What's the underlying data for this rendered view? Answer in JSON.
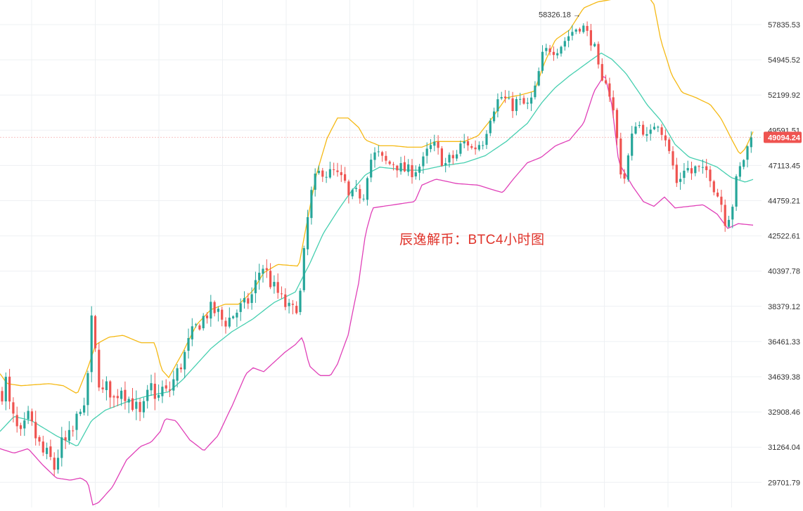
{
  "chart_data": {
    "type": "candlestick",
    "watermark": "辰逸解币：BTC4小时图",
    "price_axis": {
      "ticks": [
        57835.53,
        54945.52,
        52199.92,
        49591.51,
        47113.45,
        44759.21,
        42522.61,
        40397.78,
        38379.12,
        36461.33,
        34639.38,
        32908.46,
        31264.04,
        29701.79
      ],
      "range": [
        29000,
        59000
      ]
    },
    "last_price": {
      "label": "49094.24",
      "value": 49094.24
    },
    "high_annotation": {
      "label": "58326.18",
      "value": 58326.18
    },
    "colors": {
      "up": "#26a69a",
      "down": "#ef5350",
      "upper_band": "#f5b914",
      "middle_band": "#46cfb0",
      "lower_band": "#e040b8",
      "grid": "#eef0f3"
    },
    "indicator": "Bollinger Bands",
    "path_keys": [
      [
        0,
        33500
      ],
      [
        8,
        34500
      ],
      [
        14,
        33100
      ],
      [
        22,
        32200
      ],
      [
        30,
        31700
      ],
      [
        40,
        32600
      ],
      [
        50,
        31800
      ],
      [
        60,
        31000
      ],
      [
        70,
        30800
      ],
      [
        78,
        30300
      ],
      [
        85,
        31300
      ],
      [
        95,
        31500
      ],
      [
        105,
        32000
      ],
      [
        115,
        33400
      ],
      [
        121,
        32600
      ],
      [
        126,
        35500
      ],
      [
        130,
        37600
      ],
      [
        134,
        36300
      ],
      [
        140,
        34600
      ],
      [
        146,
        33800
      ],
      [
        154,
        34200
      ],
      [
        162,
        33500
      ],
      [
        172,
        34200
      ],
      [
        182,
        33600
      ],
      [
        192,
        33200
      ],
      [
        200,
        32600
      ],
      [
        208,
        33500
      ],
      [
        216,
        34200
      ],
      [
        224,
        33500
      ],
      [
        232,
        34100
      ],
      [
        238,
        33700
      ],
      [
        246,
        34400
      ],
      [
        254,
        35000
      ],
      [
        262,
        35700
      ],
      [
        272,
        36800
      ],
      [
        282,
        37400
      ],
      [
        292,
        37900
      ],
      [
        300,
        38200
      ],
      [
        310,
        38000
      ],
      [
        318,
        37500
      ],
      [
        326,
        37700
      ],
      [
        334,
        38000
      ],
      [
        342,
        38300
      ],
      [
        350,
        38500
      ],
      [
        358,
        39000
      ],
      [
        366,
        40000
      ],
      [
        372,
        40800
      ],
      [
        378,
        40400
      ],
      [
        386,
        39600
      ],
      [
        394,
        39200
      ],
      [
        400,
        38800
      ],
      [
        408,
        38300
      ],
      [
        416,
        38100
      ],
      [
        424,
        38600
      ],
      [
        430,
        39600
      ],
      [
        434,
        42700
      ],
      [
        438,
        43700
      ],
      [
        444,
        45600
      ],
      [
        450,
        46400
      ],
      [
        458,
        46800
      ],
      [
        466,
        46500
      ],
      [
        474,
        46700
      ],
      [
        482,
        46300
      ],
      [
        490,
        46000
      ],
      [
        496,
        44900
      ],
      [
        502,
        45100
      ],
      [
        510,
        45300
      ],
      [
        516,
        44900
      ],
      [
        522,
        46600
      ],
      [
        528,
        47600
      ],
      [
        536,
        48000
      ],
      [
        544,
        47500
      ],
      [
        552,
        47200
      ],
      [
        560,
        47300
      ],
      [
        568,
        47000
      ],
      [
        576,
        46800
      ],
      [
        584,
        46700
      ],
      [
        592,
        46900
      ],
      [
        600,
        47200
      ],
      [
        608,
        48100
      ],
      [
        616,
        48600
      ],
      [
        624,
        48000
      ],
      [
        632,
        47100
      ],
      [
        640,
        47600
      ],
      [
        648,
        47700
      ],
      [
        656,
        48600
      ],
      [
        664,
        48800
      ],
      [
        672,
        48200
      ],
      [
        680,
        48600
      ],
      [
        688,
        48900
      ],
      [
        696,
        50500
      ],
      [
        704,
        51500
      ],
      [
        712,
        52100
      ],
      [
        720,
        51800
      ],
      [
        728,
        51300
      ],
      [
        736,
        51800
      ],
      [
        744,
        51500
      ],
      [
        752,
        51400
      ],
      [
        760,
        52400
      ],
      [
        766,
        53900
      ],
      [
        772,
        55400
      ],
      [
        780,
        55900
      ],
      [
        790,
        55700
      ],
      [
        800,
        56300
      ],
      [
        808,
        56900
      ],
      [
        816,
        57400
      ],
      [
        824,
        57700
      ],
      [
        830,
        57600
      ],
      [
        836,
        57000
      ],
      [
        842,
        56400
      ],
      [
        848,
        55500
      ],
      [
        852,
        53700
      ],
      [
        856,
        53000
      ],
      [
        862,
        53500
      ],
      [
        868,
        52000
      ],
      [
        874,
        50500
      ],
      [
        880,
        47800
      ],
      [
        886,
        45700
      ],
      [
        892,
        47300
      ],
      [
        898,
        48900
      ],
      [
        904,
        50200
      ],
      [
        910,
        49900
      ],
      [
        916,
        49600
      ],
      [
        922,
        48700
      ],
      [
        928,
        49800
      ],
      [
        934,
        50400
      ],
      [
        940,
        49700
      ],
      [
        946,
        49200
      ],
      [
        952,
        47900
      ],
      [
        958,
        46900
      ],
      [
        964,
        45500
      ],
      [
        970,
        46900
      ],
      [
        976,
        47100
      ],
      [
        982,
        46500
      ],
      [
        988,
        46900
      ],
      [
        994,
        46800
      ],
      [
        1000,
        46600
      ],
      [
        1006,
        46800
      ],
      [
        1012,
        46300
      ],
      [
        1018,
        45200
      ],
      [
        1024,
        45100
      ],
      [
        1030,
        43500
      ],
      [
        1036,
        43800
      ],
      [
        1042,
        44600
      ],
      [
        1048,
        46300
      ],
      [
        1054,
        47100
      ],
      [
        1060,
        47900
      ],
      [
        1066,
        48800
      ],
      [
        1072,
        49094
      ]
    ],
    "upper_band_keys": [
      [
        0,
        34800
      ],
      [
        10,
        34300
      ],
      [
        30,
        34200
      ],
      [
        70,
        34300
      ],
      [
        90,
        34200
      ],
      [
        110,
        33800
      ],
      [
        124,
        35000
      ],
      [
        136,
        36300
      ],
      [
        155,
        36700
      ],
      [
        175,
        36800
      ],
      [
        200,
        36400
      ],
      [
        220,
        36400
      ],
      [
        230,
        35000
      ],
      [
        240,
        34600
      ],
      [
        260,
        35900
      ],
      [
        280,
        37400
      ],
      [
        300,
        38200
      ],
      [
        320,
        38500
      ],
      [
        340,
        38500
      ],
      [
        360,
        39300
      ],
      [
        375,
        40300
      ],
      [
        395,
        40800
      ],
      [
        425,
        40700
      ],
      [
        435,
        43000
      ],
      [
        450,
        46500
      ],
      [
        465,
        49000
      ],
      [
        480,
        50500
      ],
      [
        495,
        50500
      ],
      [
        510,
        49800
      ],
      [
        520,
        48900
      ],
      [
        540,
        48500
      ],
      [
        560,
        48500
      ],
      [
        580,
        48400
      ],
      [
        600,
        48400
      ],
      [
        620,
        48800
      ],
      [
        640,
        48800
      ],
      [
        660,
        48800
      ],
      [
        680,
        49200
      ],
      [
        700,
        50500
      ],
      [
        720,
        52000
      ],
      [
        740,
        52200
      ],
      [
        760,
        52500
      ],
      [
        775,
        54800
      ],
      [
        790,
        56600
      ],
      [
        810,
        57400
      ],
      [
        830,
        59200
      ],
      [
        850,
        59700
      ],
      [
        870,
        59900
      ],
      [
        880,
        60500
      ],
      [
        900,
        60800
      ],
      [
        915,
        60700
      ],
      [
        930,
        59500
      ],
      [
        940,
        56500
      ],
      [
        955,
        53800
      ],
      [
        970,
        52400
      ],
      [
        990,
        52000
      ],
      [
        1010,
        51500
      ],
      [
        1025,
        50500
      ],
      [
        1040,
        49000
      ],
      [
        1052,
        47900
      ],
      [
        1060,
        48300
      ],
      [
        1072,
        49600
      ]
    ],
    "middle_band_keys": [
      [
        0,
        32000
      ],
      [
        20,
        32700
      ],
      [
        45,
        32500
      ],
      [
        80,
        31800
      ],
      [
        110,
        31300
      ],
      [
        130,
        32500
      ],
      [
        150,
        33000
      ],
      [
        180,
        33400
      ],
      [
        210,
        33700
      ],
      [
        240,
        33900
      ],
      [
        260,
        34500
      ],
      [
        280,
        35300
      ],
      [
        300,
        36100
      ],
      [
        330,
        37000
      ],
      [
        360,
        37700
      ],
      [
        390,
        38600
      ],
      [
        420,
        39200
      ],
      [
        440,
        40800
      ],
      [
        460,
        42700
      ],
      [
        480,
        44100
      ],
      [
        500,
        45400
      ],
      [
        520,
        46500
      ],
      [
        540,
        47000
      ],
      [
        560,
        46900
      ],
      [
        580,
        46800
      ],
      [
        600,
        46800
      ],
      [
        630,
        47100
      ],
      [
        660,
        47300
      ],
      [
        690,
        47800
      ],
      [
        720,
        48800
      ],
      [
        750,
        50100
      ],
      [
        770,
        51600
      ],
      [
        790,
        52800
      ],
      [
        810,
        53700
      ],
      [
        830,
        54500
      ],
      [
        845,
        55100
      ],
      [
        855,
        55500
      ],
      [
        870,
        55000
      ],
      [
        890,
        53900
      ],
      [
        920,
        51500
      ],
      [
        940,
        50300
      ],
      [
        960,
        48600
      ],
      [
        980,
        47700
      ],
      [
        1000,
        47400
      ],
      [
        1020,
        47000
      ],
      [
        1040,
        46300
      ],
      [
        1060,
        46000
      ],
      [
        1072,
        46200
      ]
    ],
    "lower_band_keys": [
      [
        0,
        31200
      ],
      [
        20,
        31000
      ],
      [
        40,
        31200
      ],
      [
        60,
        30500
      ],
      [
        80,
        29900
      ],
      [
        100,
        29800
      ],
      [
        115,
        29900
      ],
      [
        125,
        29700
      ],
      [
        132,
        28700
      ],
      [
        140,
        28800
      ],
      [
        160,
        29500
      ],
      [
        180,
        30700
      ],
      [
        200,
        31300
      ],
      [
        215,
        31500
      ],
      [
        228,
        32000
      ],
      [
        235,
        32600
      ],
      [
        250,
        32500
      ],
      [
        270,
        31600
      ],
      [
        290,
        31100
      ],
      [
        310,
        31800
      ],
      [
        330,
        33200
      ],
      [
        350,
        34800
      ],
      [
        360,
        35100
      ],
      [
        375,
        34900
      ],
      [
        390,
        35400
      ],
      [
        405,
        35900
      ],
      [
        420,
        36300
      ],
      [
        430,
        36700
      ],
      [
        440,
        35200
      ],
      [
        455,
        34700
      ],
      [
        470,
        34700
      ],
      [
        480,
        35300
      ],
      [
        495,
        36800
      ],
      [
        510,
        39700
      ],
      [
        520,
        42700
      ],
      [
        530,
        44300
      ],
      [
        560,
        44500
      ],
      [
        590,
        44700
      ],
      [
        600,
        45800
      ],
      [
        620,
        46200
      ],
      [
        650,
        45900
      ],
      [
        680,
        45800
      ],
      [
        700,
        45500
      ],
      [
        715,
        45300
      ],
      [
        730,
        46200
      ],
      [
        750,
        47300
      ],
      [
        770,
        47700
      ],
      [
        790,
        48500
      ],
      [
        810,
        48900
      ],
      [
        830,
        50100
      ],
      [
        845,
        52500
      ],
      [
        860,
        53800
      ],
      [
        870,
        51500
      ],
      [
        880,
        47300
      ],
      [
        900,
        45700
      ],
      [
        915,
        44700
      ],
      [
        930,
        44400
      ],
      [
        945,
        45000
      ],
      [
        960,
        44300
      ],
      [
        980,
        44400
      ],
      [
        1000,
        44500
      ],
      [
        1020,
        43900
      ],
      [
        1035,
        43000
      ],
      [
        1050,
        43300
      ],
      [
        1072,
        43200
      ]
    ]
  }
}
